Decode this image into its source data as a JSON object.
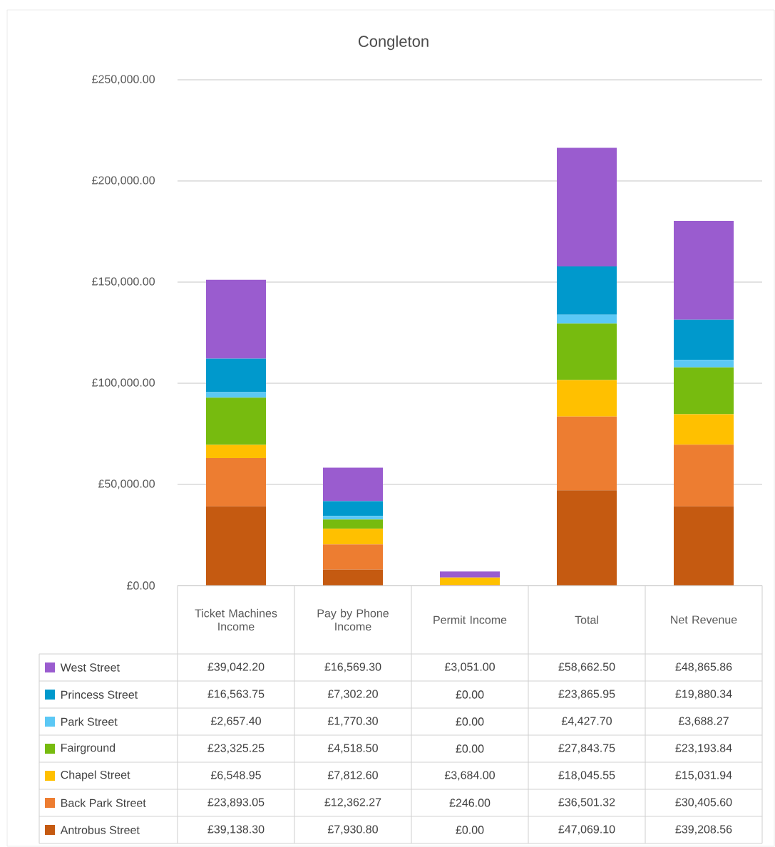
{
  "chart_data": {
    "type": "bar",
    "title": "Congleton",
    "stacked": true,
    "grid": "y",
    "legend": "bottom",
    "categories": [
      "Ticket Machines Income",
      "Pay by Phone Income",
      "Permit Income",
      "Total",
      "Net Revenue"
    ],
    "ylim": [
      0,
      250000
    ],
    "yticks": [
      {
        "value": 0,
        "label": "£0.00"
      },
      {
        "value": 50000,
        "label": "£50,000.00"
      },
      {
        "value": 100000,
        "label": "£100,000.00"
      },
      {
        "value": 150000,
        "label": "£150,000.00"
      },
      {
        "value": 200000,
        "label": "£200,000.00"
      },
      {
        "value": 250000,
        "label": "£250,000.00"
      }
    ],
    "series": [
      {
        "name": "Antrobus Street",
        "color": "#c55a11",
        "values": [
          39138.3,
          7930.8,
          0.0,
          47069.1,
          39208.56
        ],
        "value_labels": [
          "£39,138.30",
          "£7,930.80",
          "£0.00",
          "£47,069.10",
          "£39,208.56"
        ]
      },
      {
        "name": "Back Park Street",
        "color": "#ed7d31",
        "values": [
          23893.05,
          12362.27,
          246.0,
          36501.32,
          30405.6
        ],
        "value_labels": [
          "£23,893.05",
          "£12,362.27",
          "£246.00",
          "£36,501.32",
          "£30,405.60"
        ]
      },
      {
        "name": "Chapel Street",
        "color": "#ffc000",
        "values": [
          6548.95,
          7812.6,
          3684.0,
          18045.55,
          15031.94
        ],
        "value_labels": [
          "£6,548.95",
          "£7,812.60",
          "£3,684.00",
          "£18,045.55",
          "£15,031.94"
        ]
      },
      {
        "name": "Fairground",
        "color": "#77bb0f",
        "values": [
          23325.25,
          4518.5,
          0.0,
          27843.75,
          23193.84
        ],
        "value_labels": [
          "£23,325.25",
          "£4,518.50",
          "£0.00",
          "£27,843.75",
          "£23,193.84"
        ]
      },
      {
        "name": "Park Street",
        "color": "#5bc8f5",
        "values": [
          2657.4,
          1770.3,
          0.0,
          4427.7,
          3688.27
        ],
        "value_labels": [
          "£2,657.40",
          "£1,770.30",
          "£0.00",
          "£4,427.70",
          "£3,688.27"
        ]
      },
      {
        "name": "Princess Street",
        "color": "#0099cc",
        "values": [
          16563.75,
          7302.2,
          0.0,
          23865.95,
          19880.34
        ],
        "value_labels": [
          "£16,563.75",
          "£7,302.20",
          "£0.00",
          "£23,865.95",
          "£19,880.34"
        ]
      },
      {
        "name": "West Street",
        "color": "#9a5ccf",
        "values": [
          39042.2,
          16569.3,
          3051.0,
          58662.5,
          48865.86
        ],
        "value_labels": [
          "£39,042.20",
          "£16,569.30",
          "£3,051.00",
          "£58,662.50",
          "£48,865.86"
        ]
      }
    ]
  }
}
